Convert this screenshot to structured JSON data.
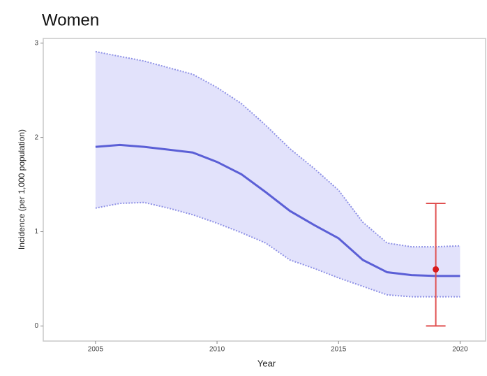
{
  "chart_data": {
    "type": "line",
    "title": "Women",
    "x_label": "Year",
    "y_label": "Incidence (per 1,000 population)",
    "x": [
      2005,
      2006,
      2007,
      2008,
      2009,
      2010,
      2011,
      2012,
      2013,
      2014,
      2015,
      2016,
      2017,
      2018,
      2019,
      2020
    ],
    "series": [
      {
        "color": "#5b5fd6",
        "values": [
          1.9,
          1.92,
          1.9,
          1.87,
          1.84,
          1.74,
          1.61,
          1.42,
          1.22,
          1.07,
          0.93,
          0.7,
          0.57,
          0.54,
          0.53,
          0.53
        ]
      }
    ],
    "band": {
      "color": "#e2e2fb",
      "line_color": "#8f92e6",
      "upper": [
        2.91,
        2.86,
        2.81,
        2.74,
        2.67,
        2.53,
        2.36,
        2.13,
        1.88,
        1.67,
        1.44,
        1.1,
        0.88,
        0.84,
        0.84,
        0.85
      ],
      "lower": [
        1.25,
        1.3,
        1.31,
        1.25,
        1.18,
        1.09,
        0.99,
        0.88,
        0.7,
        0.61,
        0.51,
        0.42,
        0.33,
        0.31,
        0.31,
        0.31
      ]
    },
    "error_point": {
      "x": 2019,
      "y": 0.6,
      "low": 0,
      "high": 1.3,
      "color": "#e05050",
      "point_color": "#d81b1b"
    },
    "xlim": [
      2002.85,
      2021.05
    ],
    "xticks": [
      2005,
      2010,
      2015,
      2020
    ],
    "ylim": [
      -0.16,
      3.05
    ],
    "yticks": [
      0,
      1,
      2,
      3
    ]
  }
}
